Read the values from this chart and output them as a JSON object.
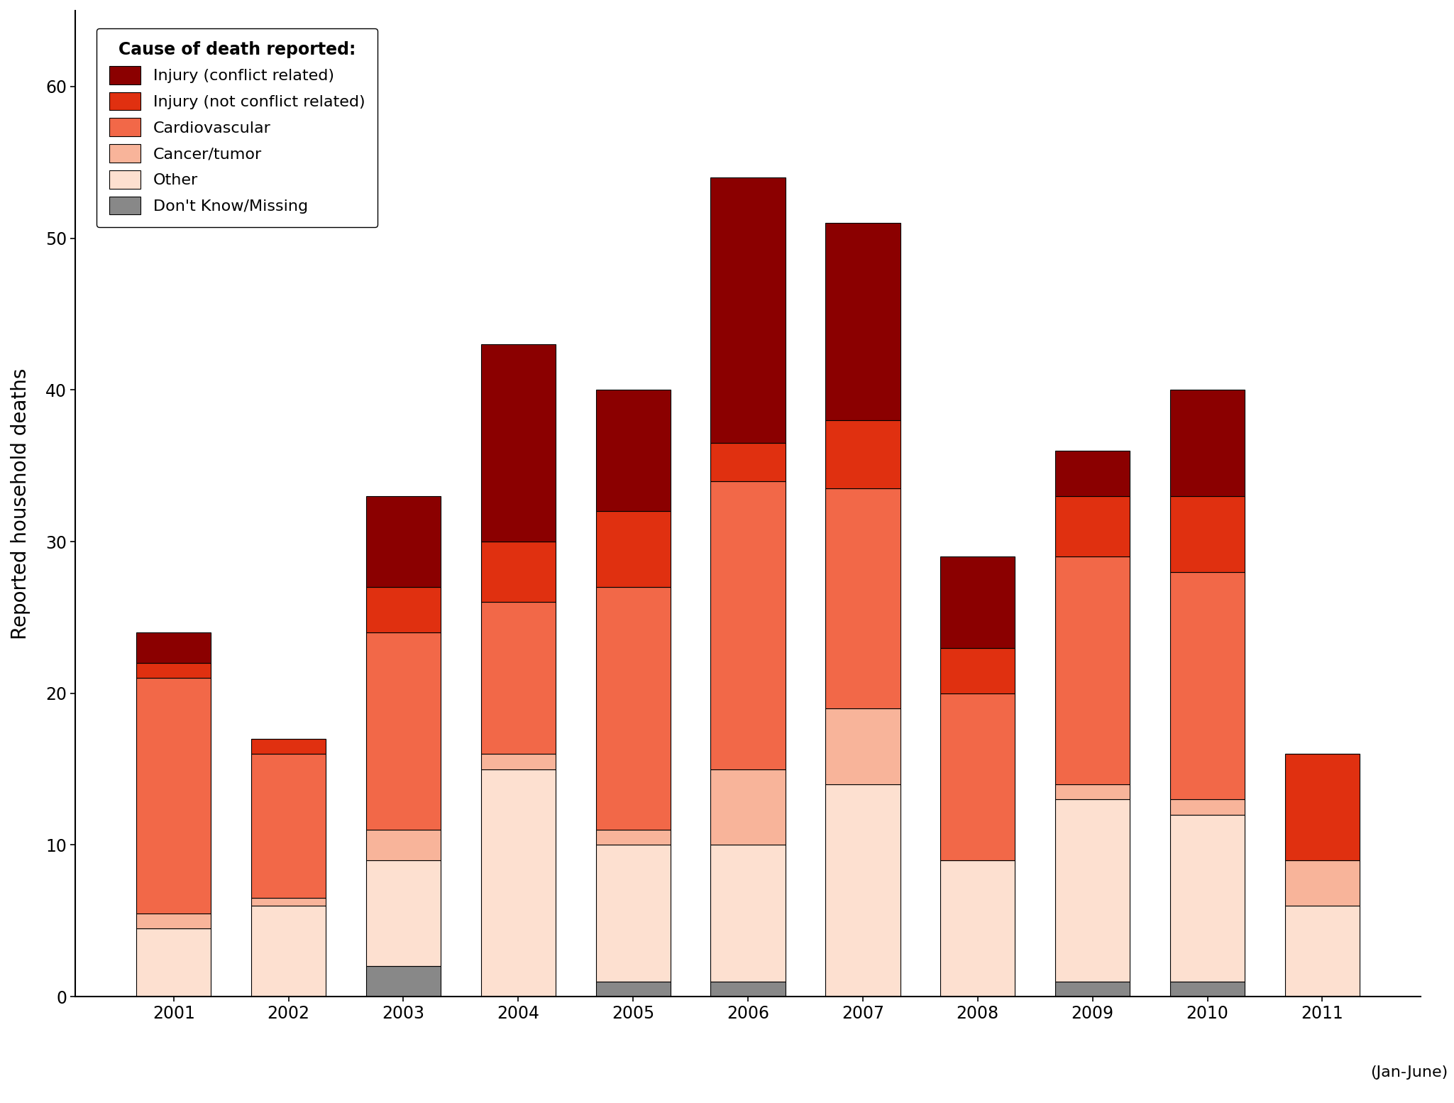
{
  "year_labels": [
    "2001",
    "2002",
    "2003",
    "2004",
    "2005",
    "2006",
    "2007",
    "2008",
    "2009",
    "2010",
    "2011"
  ],
  "xlabel_note": "(Jan-June)",
  "ylabel": "Reported household deaths",
  "colors": {
    "Other": "#fde0d0",
    "Cancer/tumor": "#f8b49a",
    "Cardiovascular": "#f26848",
    "Injury (not conflict related)": "#e03010",
    "Injury (conflict related)": "#8b0000",
    "Don't Know/Missing": "#888888"
  },
  "stack_order": [
    "Don't Know/Missing",
    "Other",
    "Cancer/tumor",
    "Cardiovascular",
    "Injury (not conflict related)",
    "Injury (conflict related)"
  ],
  "legend_order": [
    "Injury (conflict related)",
    "Injury (not conflict related)",
    "Cardiovascular",
    "Cancer/tumor",
    "Other",
    "Don't Know/Missing"
  ],
  "data": {
    "Don't Know/Missing": [
      0.0,
      0.0,
      2.0,
      0.0,
      1.0,
      1.0,
      0.0,
      0.0,
      1.0,
      1.0,
      0.0
    ],
    "Other": [
      4.5,
      6.0,
      7.0,
      15.0,
      9.0,
      9.0,
      14.0,
      9.0,
      12.0,
      11.0,
      6.0
    ],
    "Cancer/tumor": [
      1.0,
      0.5,
      2.0,
      1.0,
      1.0,
      5.0,
      5.0,
      0.0,
      1.0,
      1.0,
      3.0
    ],
    "Cardiovascular": [
      15.5,
      9.5,
      13.0,
      10.0,
      16.0,
      19.0,
      14.5,
      11.0,
      15.0,
      15.0,
      0.0
    ],
    "Injury (not conflict related)": [
      1.0,
      1.0,
      3.0,
      4.0,
      5.0,
      2.5,
      4.5,
      3.0,
      4.0,
      5.0,
      7.0
    ],
    "Injury (conflict related)": [
      2.0,
      0.0,
      6.0,
      13.0,
      8.0,
      17.5,
      13.0,
      6.0,
      3.0,
      7.0,
      0.0
    ]
  },
  "ylim": [
    0,
    65
  ],
  "yticks": [
    0,
    10,
    20,
    30,
    40,
    50,
    60
  ],
  "bar_width": 0.65,
  "figsize": [
    20.49,
    15.54
  ],
  "dpi": 100,
  "background_color": "#ffffff",
  "legend_title": "Cause of death reported:"
}
